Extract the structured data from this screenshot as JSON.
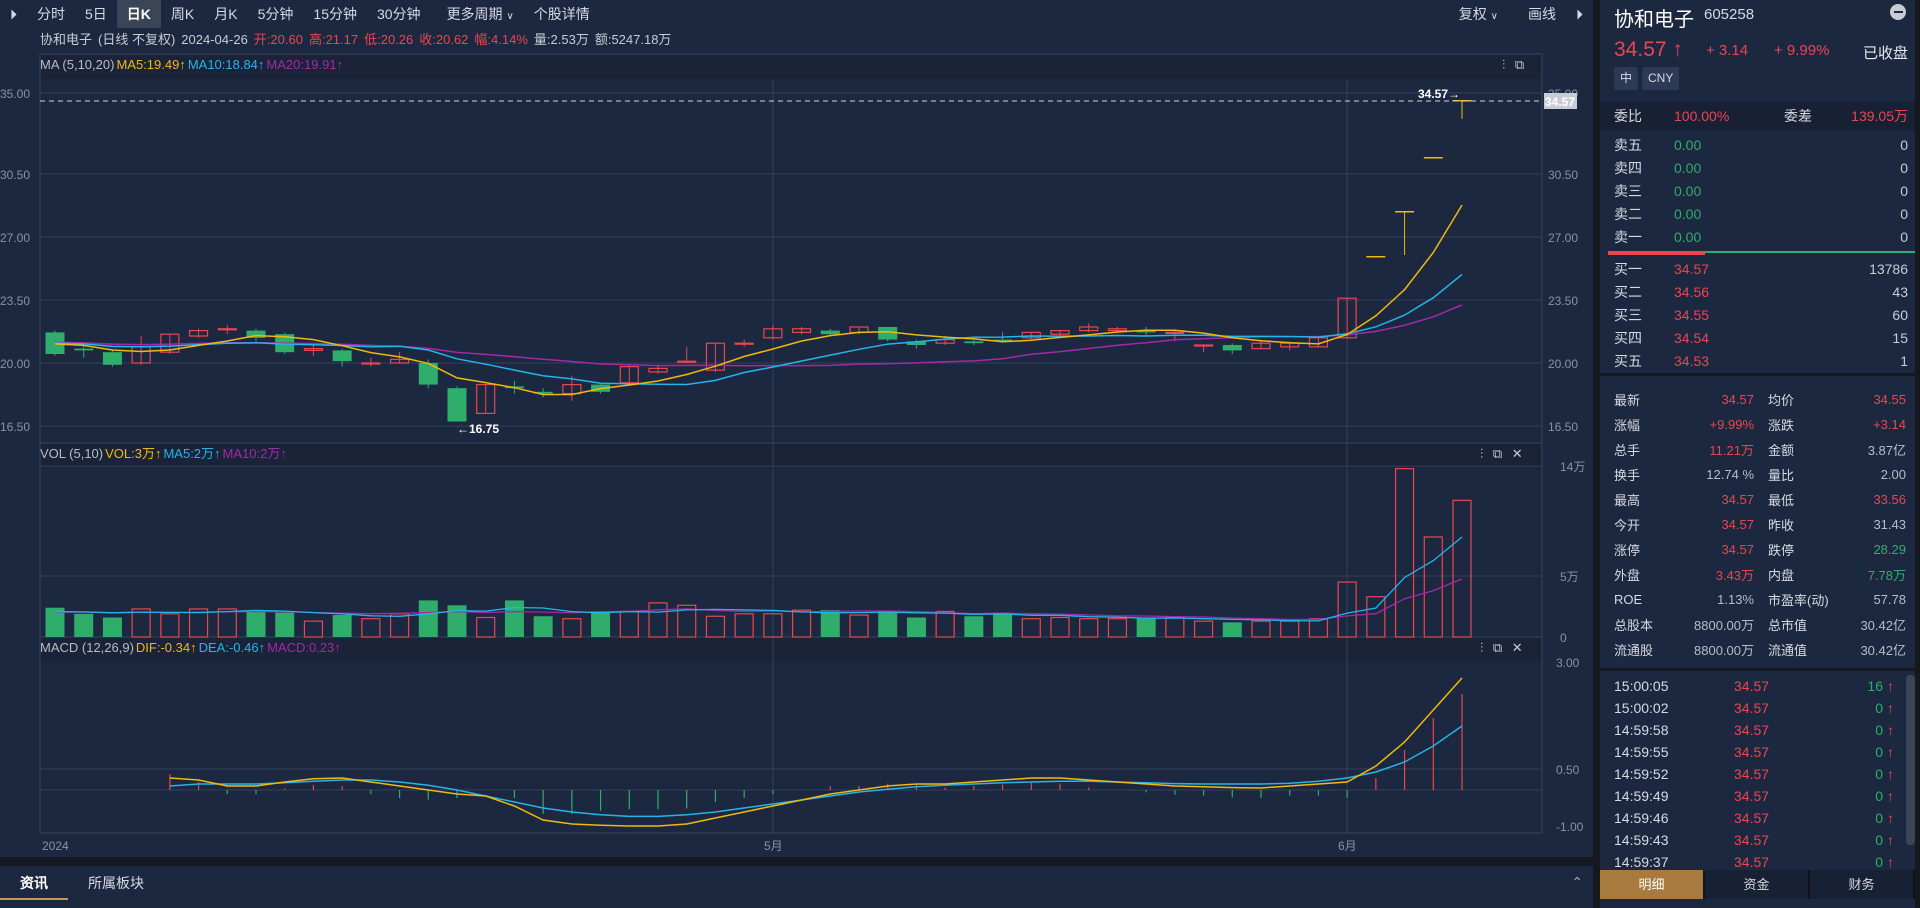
{
  "toolbar": {
    "expand_icon": "double-chevron-right",
    "tabs": [
      "分时",
      "5日",
      "日K",
      "周K",
      "月K",
      "5分钟",
      "15分钟",
      "30分钟",
      "更多周期",
      "个股详情"
    ],
    "active_tab": "日K",
    "fuquan": "复权",
    "huaxian": "画线"
  },
  "info": {
    "name": "协和电子",
    "mode": "(日线 不复权)",
    "date": "2024-04-26",
    "open": "开:20.60",
    "high": "高:21.17",
    "low": "低:20.26",
    "close": "收:20.62",
    "amp": "幅:4.14%",
    "vol": "量:2.53万",
    "amt": "额:5247.18万"
  },
  "ma_header": {
    "label": "MA (5,10,20)",
    "ma5": "MA5:19.49↑",
    "ma10": "MA10:18.84↑",
    "ma20": "MA20:19.91↑"
  },
  "vol_header": {
    "label": "VOL (5,10)",
    "vol": "VOL:3万↑",
    "ma5": "MA5:2万↑",
    "ma10": "MA10:2万↑"
  },
  "macd_header": {
    "label": "MACD (12,26,9)",
    "dif": "DIF:-0.34↑",
    "dea": "DEA:-0.46↑",
    "macd": "MACD:0.23↑"
  },
  "chart_data": {
    "type": "candlestick",
    "title": "协和电子 日K",
    "price_axis": [
      "35.00",
      "30.50",
      "27.00",
      "23.50",
      "20.00",
      "16.50"
    ],
    "vol_axis": [
      "14万",
      "5万",
      "0"
    ],
    "macd_axis": [
      "3.00",
      "0.50",
      "-1.00"
    ],
    "x_labels": [
      "2024",
      "5月",
      "6月"
    ],
    "last_price_label": "34.57",
    "high_marker": "34.57→",
    "low_marker": "←16.75",
    "candles": [
      [
        21.7,
        20.5,
        21.8,
        20.4
      ],
      [
        20.8,
        20.7,
        21.1,
        20.3
      ],
      [
        20.6,
        19.9,
        20.7,
        19.8
      ],
      [
        20.0,
        20.9,
        21.5,
        19.9
      ],
      [
        20.6,
        21.6,
        21.6,
        20.5
      ],
      [
        21.5,
        21.8,
        21.9,
        21.4
      ],
      [
        21.9,
        21.9,
        22.1,
        21.6
      ],
      [
        21.8,
        21.4,
        21.9,
        21.2
      ],
      [
        21.6,
        20.6,
        21.7,
        20.5
      ],
      [
        20.7,
        20.8,
        21.0,
        20.4
      ],
      [
        20.7,
        20.1,
        20.8,
        19.8
      ],
      [
        20.0,
        20.0,
        20.3,
        19.8
      ],
      [
        20.0,
        20.2,
        20.6,
        20.0
      ],
      [
        20.0,
        18.8,
        20.2,
        18.6
      ],
      [
        18.6,
        16.75,
        18.7,
        16.75
      ],
      [
        17.2,
        18.8,
        18.8,
        17.2
      ],
      [
        18.7,
        18.6,
        19.0,
        18.3
      ],
      [
        18.4,
        18.3,
        18.6,
        18.1
      ],
      [
        18.3,
        18.8,
        19.3,
        17.9
      ],
      [
        18.8,
        18.4,
        18.9,
        18.3
      ],
      [
        18.9,
        19.8,
        19.9,
        18.9
      ],
      [
        19.5,
        19.7,
        19.9,
        19.4
      ],
      [
        20.1,
        20.1,
        20.9,
        20.0
      ],
      [
        19.6,
        21.1,
        21.1,
        19.5
      ],
      [
        21.1,
        21.1,
        21.3,
        20.9
      ],
      [
        21.4,
        21.9,
        22.1,
        21.3
      ],
      [
        21.7,
        21.9,
        22.0,
        21.6
      ],
      [
        21.8,
        21.6,
        21.9,
        21.5
      ],
      [
        21.7,
        22.0,
        22.0,
        21.6
      ],
      [
        22.0,
        21.3,
        22.0,
        21.2
      ],
      [
        21.2,
        21.0,
        21.3,
        20.8
      ],
      [
        21.1,
        21.3,
        21.5,
        21.0
      ],
      [
        21.2,
        21.1,
        21.3,
        21.0
      ],
      [
        21.3,
        21.2,
        21.7,
        21.2
      ],
      [
        21.4,
        21.7,
        21.7,
        21.3
      ],
      [
        21.6,
        21.8,
        21.8,
        21.5
      ],
      [
        21.8,
        22.0,
        22.2,
        21.7
      ],
      [
        21.8,
        21.9,
        22.0,
        21.8
      ],
      [
        21.8,
        21.7,
        22.0,
        21.5
      ],
      [
        21.7,
        21.7,
        21.8,
        21.2
      ],
      [
        21.0,
        21.0,
        21.0,
        20.6
      ],
      [
        21.0,
        20.7,
        21.1,
        20.5
      ],
      [
        20.8,
        21.1,
        21.3,
        20.8
      ],
      [
        20.9,
        21.1,
        21.2,
        20.7
      ],
      [
        20.9,
        21.4,
        21.5,
        20.9
      ],
      [
        21.4,
        23.6,
        23.6,
        21.4
      ],
      [
        25.9,
        25.9,
        25.9,
        25.9
      ],
      [
        28.4,
        28.4,
        28.4,
        26.0
      ],
      [
        31.4,
        31.4,
        31.4,
        31.4
      ],
      [
        34.57,
        34.57,
        34.57,
        33.56
      ]
    ],
    "volume": [
      2.4,
      1.9,
      1.6,
      2.3,
      1.9,
      2.3,
      2.3,
      2.1,
      2.0,
      1.3,
      1.8,
      1.5,
      1.9,
      3.0,
      2.6,
      1.6,
      3.0,
      1.7,
      1.5,
      2.1,
      2.1,
      2.8,
      2.6,
      1.7,
      1.9,
      1.9,
      2.2,
      2.2,
      1.8,
      2.1,
      1.6,
      2.1,
      1.7,
      2.0,
      1.5,
      1.6,
      1.5,
      1.5,
      1.6,
      1.6,
      1.3,
      1.2,
      1.3,
      1.3,
      1.5,
      4.5,
      3.3,
      13.8,
      8.2,
      11.2
    ],
    "ma5_vol_end": [
      2.1,
      2.0,
      4.8,
      5.5,
      7.0
    ],
    "ma10_vol_end": [
      1.9,
      1.9,
      3.0,
      3.3,
      4.2
    ],
    "macd_dif": [
      0.3,
      0.25,
      0.1,
      0.1,
      0.2,
      0.28,
      0.3,
      0.2,
      0.1,
      0.0,
      -0.1,
      -0.15,
      -0.4,
      -0.75,
      -0.85,
      -0.88,
      -0.9,
      -0.9,
      -0.85,
      -0.7,
      -0.55,
      -0.4,
      -0.25,
      -0.1,
      0.0,
      0.1,
      0.15,
      0.15,
      0.2,
      0.25,
      0.3,
      0.3,
      0.25,
      0.2,
      0.15,
      0.1,
      0.08,
      0.06,
      0.05,
      0.1,
      0.15,
      0.2,
      0.6,
      1.2,
      2.0,
      2.8
    ],
    "macd_dea": [
      0.1,
      0.15,
      0.15,
      0.15,
      0.18,
      0.22,
      0.25,
      0.25,
      0.2,
      0.12,
      0.0,
      -0.15,
      -0.3,
      -0.45,
      -0.55,
      -0.62,
      -0.66,
      -0.66,
      -0.62,
      -0.55,
      -0.45,
      -0.35,
      -0.25,
      -0.15,
      -0.05,
      0.02,
      0.08,
      0.12,
      0.15,
      0.18,
      0.2,
      0.22,
      0.22,
      0.2,
      0.18,
      0.16,
      0.15,
      0.15,
      0.15,
      0.17,
      0.22,
      0.3,
      0.45,
      0.7,
      1.1,
      1.6
    ]
  },
  "quote": {
    "name": "协和电子",
    "code": "605258",
    "price": "34.57 ↑",
    "change": "+ 3.14",
    "pct": "+ 9.99%",
    "status": "已收盘",
    "badge1": "中",
    "badge2": "CNY",
    "webi_label": "委比",
    "webi": "100.00%",
    "wecha_label": "委差",
    "wecha": "139.05万"
  },
  "asks": [
    {
      "label": "卖五",
      "price": "0.00",
      "vol": "0"
    },
    {
      "label": "卖四",
      "price": "0.00",
      "vol": "0"
    },
    {
      "label": "卖三",
      "price": "0.00",
      "vol": "0"
    },
    {
      "label": "卖二",
      "price": "0.00",
      "vol": "0"
    },
    {
      "label": "卖一",
      "price": "0.00",
      "vol": "0"
    }
  ],
  "bids": [
    {
      "label": "买一",
      "price": "34.57",
      "vol": "13786"
    },
    {
      "label": "买二",
      "price": "34.56",
      "vol": "43"
    },
    {
      "label": "买三",
      "price": "34.55",
      "vol": "60"
    },
    {
      "label": "买四",
      "price": "34.54",
      "vol": "15"
    },
    {
      "label": "买五",
      "price": "34.53",
      "vol": "1"
    }
  ],
  "stats": [
    {
      "k1": "最新",
      "v1": "34.57",
      "c1": "red",
      "k2": "均价",
      "v2": "34.55",
      "c2": "red"
    },
    {
      "k1": "涨幅",
      "v1": "+9.99%",
      "c1": "red",
      "k2": "涨跌",
      "v2": "+3.14",
      "c2": "red"
    },
    {
      "k1": "总手",
      "v1": "11.21万",
      "c1": "red",
      "k2": "金额",
      "v2": "3.87亿",
      "c2": "grey"
    },
    {
      "k1": "换手",
      "v1": "12.74 %",
      "c1": "grey",
      "k2": "量比",
      "v2": "2.00",
      "c2": "grey"
    },
    {
      "k1": "最高",
      "v1": "34.57",
      "c1": "red",
      "k2": "最低",
      "v2": "33.56",
      "c2": "red"
    },
    {
      "k1": "今开",
      "v1": "34.57",
      "c1": "red",
      "k2": "昨收",
      "v2": "31.43",
      "c2": "grey"
    },
    {
      "k1": "涨停",
      "v1": "34.57",
      "c1": "red",
      "k2": "跌停",
      "v2": "28.29",
      "c2": "green"
    },
    {
      "k1": "外盘",
      "v1": "3.43万",
      "c1": "red",
      "k2": "内盘",
      "v2": "7.78万",
      "c2": "green"
    },
    {
      "k1": "ROE",
      "v1": "1.13%",
      "c1": "grey",
      "k2": "市盈率(动)",
      "v2": "57.78",
      "c2": "grey"
    },
    {
      "k1": "总股本",
      "v1": "8800.00万",
      "c1": "grey",
      "k2": "总市值",
      "v2": "30.42亿",
      "c2": "grey"
    },
    {
      "k1": "流通股",
      "v1": "8800.00万",
      "c1": "grey",
      "k2": "流通值",
      "v2": "30.42亿",
      "c2": "grey"
    }
  ],
  "ticks": [
    {
      "time": "15:00:05",
      "price": "34.57",
      "vol": "16"
    },
    {
      "time": "15:00:02",
      "price": "34.57",
      "vol": "0"
    },
    {
      "time": "14:59:58",
      "price": "34.57",
      "vol": "0"
    },
    {
      "time": "14:59:55",
      "price": "34.57",
      "vol": "0"
    },
    {
      "time": "14:59:52",
      "price": "34.57",
      "vol": "0"
    },
    {
      "time": "14:59:49",
      "price": "34.57",
      "vol": "0"
    },
    {
      "time": "14:59:46",
      "price": "34.57",
      "vol": "0"
    },
    {
      "time": "14:59:43",
      "price": "34.57",
      "vol": "0"
    },
    {
      "time": "14:59:37",
      "price": "34.57",
      "vol": "0"
    }
  ],
  "right_tabs": [
    "明细",
    "资金",
    "财务"
  ],
  "bottom_tabs": [
    "资讯",
    "所属板块"
  ],
  "colors": {
    "up": "#e9474f",
    "down": "#2fae6b",
    "ma5": "#f0b90b",
    "ma10": "#24b4ea",
    "ma20": "#a22aa8",
    "bg": "#1c2740",
    "accent": "#a97a3e"
  }
}
